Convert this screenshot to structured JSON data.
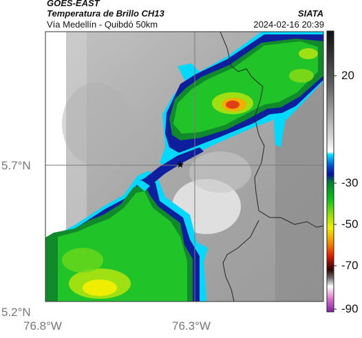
{
  "header": {
    "source": "GOES-EAST",
    "product": "Temperatura de Brillo CH13",
    "route": "Vía Medellín - Quibdó 50km",
    "org": "SIATA",
    "datetime": "2024-02-16 20:39"
  },
  "map": {
    "lon_ticks": [
      "76.8°W",
      "76.3°W"
    ],
    "lat_ticks": [
      "5.7°N",
      "5.2°N"
    ],
    "marker_icon": "star-icon"
  },
  "colorbar": {
    "ticks": [
      "20",
      "-30",
      "-50",
      "-70",
      "-90"
    ],
    "colors": {
      "top": "#111111",
      "gray_mid": "#b0b0b0",
      "white": "#ffffff",
      "cyan": "#00e0ff",
      "blue": "#0010a0",
      "green": "#10c020",
      "yellow": "#f0f000",
      "red": "#e02000",
      "dark": "#300000",
      "magenta": "#c040b0"
    }
  }
}
